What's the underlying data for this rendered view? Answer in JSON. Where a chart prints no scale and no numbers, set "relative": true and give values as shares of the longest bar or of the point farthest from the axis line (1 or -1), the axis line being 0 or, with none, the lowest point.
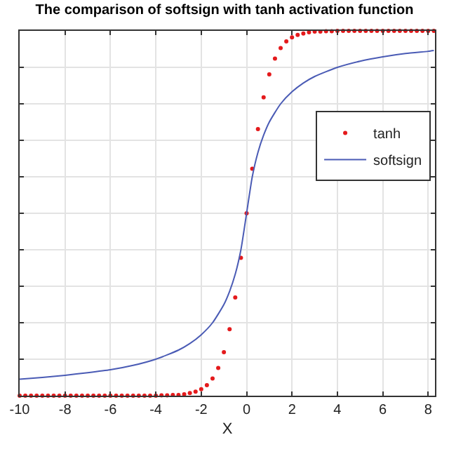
{
  "chart_data": {
    "type": "line",
    "title": "The comparison of softsign with tanh activation function",
    "xlabel": "X",
    "relative": true,
    "xlim": [
      -10,
      8.3
    ],
    "xticks": [
      -10,
      -8,
      -6,
      -4,
      -2,
      0,
      2,
      4,
      6,
      8
    ],
    "grid": true,
    "legend": "top right",
    "series": [
      {
        "name": "tanh",
        "type": "scatter",
        "marker": "circle",
        "color": "#e41a1c",
        "x": [
          -10,
          -9.75,
          -9.5,
          -9.25,
          -9,
          -8.75,
          -8.5,
          -8.25,
          -8,
          -7.75,
          -7.5,
          -7.25,
          -7,
          -6.75,
          -6.5,
          -6.25,
          -6,
          -5.75,
          -5.5,
          -5.25,
          -5,
          -4.75,
          -4.5,
          -4.25,
          -4,
          -3.75,
          -3.5,
          -3.25,
          -3,
          -2.75,
          -2.5,
          -2.25,
          -2,
          -1.75,
          -1.5,
          -1.25,
          -1,
          -0.75,
          -0.5,
          -0.25,
          0,
          0.25,
          0.5,
          0.75,
          1,
          1.25,
          1.5,
          1.75,
          2,
          2.25,
          2.5,
          2.75,
          3,
          3.25,
          3.5,
          3.75,
          4,
          4.25,
          4.5,
          4.75,
          5,
          5.25,
          5.5,
          5.75,
          6,
          6.25,
          6.5,
          6.75,
          7,
          7.25,
          7.5,
          7.75,
          8,
          8.25
        ],
        "values": [
          0,
          0,
          0,
          0,
          0,
          0,
          0,
          0,
          0,
          0,
          0,
          0,
          0,
          0,
          0,
          0,
          0,
          0,
          0,
          0,
          0,
          0,
          0,
          0,
          0,
          0.001,
          0.001,
          0.002,
          0.002,
          0.004,
          0.007,
          0.011,
          0.018,
          0.029,
          0.047,
          0.076,
          0.119,
          0.182,
          0.269,
          0.378,
          0.5,
          0.622,
          0.731,
          0.818,
          0.881,
          0.924,
          0.953,
          0.971,
          0.982,
          0.989,
          0.993,
          0.996,
          0.998,
          0.998,
          0.999,
          0.999,
          1,
          1,
          1,
          1,
          1,
          1,
          1,
          1,
          1,
          1,
          1,
          1,
          1,
          1,
          1,
          1,
          1,
          1
        ]
      },
      {
        "name": "softsign",
        "type": "line",
        "line_style": "solid",
        "color": "#4a5bb5",
        "x": [
          -10,
          -9,
          -8,
          -7,
          -6,
          -5,
          -4,
          -3,
          -2.5,
          -2,
          -1.5,
          -1,
          -0.75,
          -0.5,
          -0.25,
          0,
          0.25,
          0.5,
          0.75,
          1,
          1.5,
          2,
          2.5,
          3,
          4,
          5,
          6,
          7,
          8,
          8.25
        ],
        "values": [
          0.045,
          0.05,
          0.056,
          0.063,
          0.071,
          0.083,
          0.1,
          0.125,
          0.143,
          0.167,
          0.2,
          0.25,
          0.286,
          0.333,
          0.4,
          0.5,
          0.6,
          0.667,
          0.714,
          0.75,
          0.8,
          0.833,
          0.857,
          0.875,
          0.9,
          0.917,
          0.929,
          0.938,
          0.944,
          0.946
        ]
      }
    ]
  }
}
